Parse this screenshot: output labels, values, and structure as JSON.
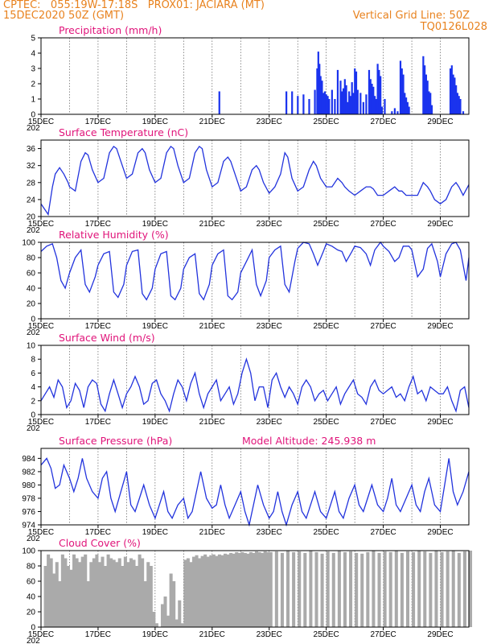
{
  "header": {
    "line1_left": "CPTEC:   055:19W-17:18S   PROX01: JACIARA (MT)",
    "line2_left": "15DEC2020 50Z (GMT)",
    "line2_right": "Vertical Grid Line: 50Z",
    "line3_right": "TQ0126L028"
  },
  "colors": {
    "line": "#2233dd",
    "bar": "#1a33ee",
    "cloud": "#aaaaaa",
    "title": "#e0147a",
    "header": "#e8821e"
  },
  "x_ticks": [
    "15DEC",
    "17DEC",
    "19DEC",
    "21DEC",
    "23DEC",
    "25DEC",
    "27DEC",
    "29DEC"
  ],
  "year_fragment": "202",
  "chart_data": [
    {
      "type": "bar",
      "title": "Precipitation (mm/h)",
      "ylim": [
        0,
        5
      ],
      "yticks": [
        0,
        1,
        2,
        3,
        4,
        5
      ],
      "x_range_days": [
        0,
        15
      ],
      "x": [
        6.25,
        8.6,
        8.8,
        9.0,
        9.2,
        9.4,
        9.6,
        9.68,
        9.72,
        9.76,
        9.8,
        9.85,
        9.9,
        9.95,
        10.0,
        10.05,
        10.1,
        10.2,
        10.3,
        10.4,
        10.5,
        10.55,
        10.6,
        10.65,
        10.7,
        10.75,
        10.8,
        10.85,
        10.9,
        10.95,
        11.0,
        11.05,
        11.1,
        11.2,
        11.3,
        11.4,
        11.5,
        11.55,
        11.6,
        11.65,
        11.7,
        11.75,
        11.8,
        11.85,
        11.9,
        11.95,
        12.05,
        12.3,
        12.4,
        12.5,
        12.6,
        12.65,
        12.7,
        12.75,
        12.8,
        12.85,
        12.9,
        13.4,
        13.45,
        13.5,
        13.55,
        13.6,
        13.65,
        13.7,
        14.35,
        14.4,
        14.45,
        14.5,
        14.55,
        14.6,
        14.65,
        14.7,
        14.8
      ],
      "values": [
        1.5,
        1.5,
        1.5,
        1.2,
        1.3,
        1.0,
        1.6,
        3.0,
        4.1,
        3.3,
        2.5,
        2.2,
        1.4,
        1.5,
        1.3,
        1.2,
        1.0,
        1.6,
        1.0,
        2.9,
        2.2,
        1.5,
        1.7,
        2.3,
        1.9,
        0.8,
        1.5,
        1.2,
        2.1,
        1.4,
        3.0,
        2.8,
        1.6,
        1.4,
        0.8,
        1.3,
        2.9,
        2.3,
        2.0,
        1.8,
        1.2,
        1.0,
        3.3,
        2.9,
        2.5,
        0.5,
        1.0,
        0.2,
        0.4,
        0.2,
        3.5,
        3.0,
        2.6,
        1.4,
        1.1,
        0.8,
        0.5,
        3.8,
        3.2,
        2.6,
        2.2,
        1.5,
        1.4,
        0.6,
        3.0,
        3.2,
        2.6,
        2.4,
        1.9,
        1.4,
        1.2,
        1.0,
        0.2
      ]
    },
    {
      "type": "line",
      "title": "Surface Temperature (nC)",
      "ylim": [
        20,
        38
      ],
      "yticks": [
        20,
        24,
        28,
        32,
        36
      ],
      "x_range_days": [
        0,
        15
      ],
      "x": [
        0,
        0.1,
        0.25,
        0.4,
        0.5,
        0.65,
        0.8,
        0.95,
        1.0,
        1.2,
        1.4,
        1.55,
        1.65,
        1.8,
        2.0,
        2.2,
        2.4,
        2.55,
        2.65,
        2.8,
        3.0,
        3.2,
        3.4,
        3.55,
        3.65,
        3.8,
        4.0,
        4.2,
        4.4,
        4.55,
        4.65,
        4.8,
        5.0,
        5.2,
        5.4,
        5.55,
        5.65,
        5.8,
        6.0,
        6.2,
        6.4,
        6.55,
        6.65,
        6.8,
        7.0,
        7.2,
        7.4,
        7.55,
        7.65,
        7.8,
        8.0,
        8.2,
        8.4,
        8.55,
        8.65,
        8.8,
        9.0,
        9.2,
        9.4,
        9.55,
        9.65,
        9.8,
        10.0,
        10.2,
        10.4,
        10.55,
        10.65,
        10.8,
        11.0,
        11.2,
        11.4,
        11.55,
        11.65,
        11.8,
        12.0,
        12.2,
        12.4,
        12.55,
        12.65,
        12.8,
        13.0,
        13.2,
        13.4,
        13.55,
        13.65,
        13.8,
        14.0,
        14.2,
        14.4,
        14.55,
        14.65,
        14.8,
        15.0
      ],
      "values": [
        23,
        22,
        20.5,
        27,
        30,
        31.5,
        30,
        28,
        27,
        26,
        33,
        35,
        34.5,
        31,
        28,
        29,
        35,
        36.5,
        36,
        33,
        29,
        30,
        35,
        36,
        35,
        31,
        28,
        29,
        35,
        36.5,
        36,
        32,
        28,
        29,
        35,
        36.5,
        36,
        31,
        27,
        28,
        33,
        34,
        33,
        30,
        26,
        27,
        31,
        32,
        31,
        28,
        25.5,
        27,
        30,
        35,
        34,
        29,
        26,
        27,
        31,
        33,
        32,
        29,
        27,
        27,
        29,
        28,
        27,
        26,
        25,
        26,
        27,
        27,
        26.5,
        25,
        25,
        26,
        27,
        26,
        26,
        25,
        25,
        25,
        28,
        27,
        26,
        24,
        23,
        24,
        27,
        28,
        27,
        25,
        27.5
      ]
    },
    {
      "type": "line",
      "title": "Relative Humidity (%)",
      "ylim": [
        0,
        100
      ],
      "yticks": [
        0,
        20,
        40,
        60,
        80,
        100
      ],
      "x_range_days": [
        0,
        15
      ],
      "x": [
        0,
        0.2,
        0.4,
        0.55,
        0.7,
        0.85,
        1.0,
        1.2,
        1.4,
        1.55,
        1.7,
        1.9,
        2.0,
        2.2,
        2.4,
        2.55,
        2.7,
        2.9,
        3.0,
        3.2,
        3.4,
        3.55,
        3.7,
        3.9,
        4.0,
        4.2,
        4.4,
        4.55,
        4.7,
        4.9,
        5.0,
        5.2,
        5.4,
        5.55,
        5.7,
        5.9,
        6.0,
        6.2,
        6.4,
        6.55,
        6.7,
        6.9,
        7.0,
        7.2,
        7.4,
        7.55,
        7.7,
        7.9,
        8.0,
        8.2,
        8.4,
        8.55,
        8.7,
        8.9,
        9.0,
        9.2,
        9.4,
        9.55,
        9.7,
        9.9,
        10.0,
        10.2,
        10.4,
        10.55,
        10.7,
        10.9,
        11.0,
        11.2,
        11.4,
        11.55,
        11.7,
        11.9,
        12.0,
        12.2,
        12.4,
        12.55,
        12.7,
        12.9,
        13.0,
        13.2,
        13.4,
        13.55,
        13.7,
        13.9,
        14.0,
        14.2,
        14.4,
        14.55,
        14.7,
        14.9,
        15.0
      ],
      "values": [
        88,
        95,
        98,
        80,
        50,
        40,
        60,
        80,
        90,
        45,
        35,
        55,
        70,
        85,
        88,
        35,
        28,
        45,
        70,
        88,
        90,
        33,
        25,
        40,
        65,
        85,
        88,
        30,
        25,
        40,
        65,
        80,
        85,
        33,
        25,
        45,
        70,
        85,
        90,
        30,
        25,
        35,
        60,
        75,
        90,
        45,
        30,
        50,
        80,
        90,
        95,
        45,
        35,
        75,
        92,
        100,
        98,
        85,
        70,
        88,
        98,
        95,
        90,
        88,
        75,
        88,
        95,
        93,
        85,
        70,
        90,
        100,
        95,
        88,
        75,
        80,
        95,
        95,
        90,
        55,
        65,
        92,
        98,
        75,
        55,
        85,
        98,
        100,
        90,
        50,
        80
      ]
    },
    {
      "type": "line",
      "title": "Surface Wind (m/s)",
      "ylim": [
        0,
        10
      ],
      "yticks": [
        0,
        2,
        4,
        6,
        8,
        10
      ],
      "x_range_days": [
        0,
        15
      ],
      "x": [
        0,
        0.15,
        0.3,
        0.45,
        0.6,
        0.75,
        0.9,
        1.05,
        1.2,
        1.35,
        1.5,
        1.65,
        1.8,
        1.95,
        2.1,
        2.25,
        2.4,
        2.55,
        2.7,
        2.85,
        3.0,
        3.15,
        3.3,
        3.45,
        3.6,
        3.75,
        3.9,
        4.05,
        4.2,
        4.35,
        4.5,
        4.65,
        4.8,
        4.95,
        5.1,
        5.25,
        5.4,
        5.55,
        5.7,
        5.85,
        6.0,
        6.15,
        6.3,
        6.45,
        6.6,
        6.75,
        6.9,
        7.05,
        7.2,
        7.35,
        7.5,
        7.65,
        7.8,
        7.95,
        8.1,
        8.25,
        8.4,
        8.55,
        8.7,
        8.85,
        9.0,
        9.15,
        9.3,
        9.45,
        9.6,
        9.75,
        9.9,
        10.05,
        10.2,
        10.35,
        10.5,
        10.65,
        10.8,
        10.95,
        11.1,
        11.25,
        11.4,
        11.55,
        11.7,
        11.85,
        12.0,
        12.15,
        12.3,
        12.45,
        12.6,
        12.75,
        12.9,
        13.05,
        13.2,
        13.35,
        13.5,
        13.65,
        13.8,
        13.95,
        14.1,
        14.25,
        14.4,
        14.55,
        14.7,
        14.85,
        15.0
      ],
      "values": [
        2,
        3,
        4,
        2.5,
        5,
        4,
        1,
        2,
        4.5,
        3.5,
        1,
        4,
        5,
        4.5,
        1.5,
        0.5,
        3,
        5,
        3,
        1,
        3,
        4,
        5.5,
        4,
        1.5,
        2,
        4.5,
        5,
        3,
        2,
        0.5,
        3,
        5,
        4,
        2,
        4.5,
        6,
        3,
        1,
        3,
        4,
        5,
        2,
        3,
        4,
        1.5,
        3,
        6,
        8,
        6,
        2,
        4,
        4,
        1,
        5,
        6,
        4,
        2.5,
        4,
        3,
        1.5,
        4,
        5,
        4,
        2,
        3,
        3.5,
        2,
        3,
        4,
        1.5,
        3,
        4,
        5,
        3,
        2.5,
        1.5,
        4,
        5,
        3.5,
        3,
        3.5,
        4,
        2.5,
        3,
        2,
        4,
        5.5,
        3,
        3.5,
        2,
        4,
        3.5,
        3,
        3,
        4,
        2,
        0.5,
        3.5,
        4,
        1
      ]
    },
    {
      "type": "line",
      "title": "Surface Pressure (hPa)",
      "subtitle": "Model Altitude: 245.938 m",
      "ylim": [
        974,
        985.5
      ],
      "yticks": [
        974,
        976,
        978,
        980,
        982,
        984
      ],
      "x_range_days": [
        0,
        15
      ],
      "x": [
        0,
        0.2,
        0.35,
        0.5,
        0.65,
        0.8,
        1.0,
        1.15,
        1.3,
        1.45,
        1.6,
        1.8,
        2.0,
        2.15,
        2.3,
        2.45,
        2.6,
        2.8,
        3.0,
        3.15,
        3.3,
        3.45,
        3.6,
        3.8,
        4.0,
        4.15,
        4.3,
        4.45,
        4.6,
        4.8,
        5.0,
        5.15,
        5.3,
        5.45,
        5.6,
        5.8,
        6.0,
        6.15,
        6.3,
        6.45,
        6.6,
        6.8,
        7.0,
        7.15,
        7.3,
        7.45,
        7.6,
        7.8,
        8.0,
        8.15,
        8.3,
        8.45,
        8.6,
        8.8,
        9.0,
        9.15,
        9.3,
        9.45,
        9.6,
        9.8,
        10.0,
        10.15,
        10.3,
        10.45,
        10.6,
        10.8,
        11.0,
        11.15,
        11.3,
        11.45,
        11.6,
        11.8,
        12.0,
        12.15,
        12.3,
        12.45,
        12.6,
        12.8,
        13.0,
        13.15,
        13.3,
        13.45,
        13.6,
        13.8,
        14.0,
        14.15,
        14.3,
        14.45,
        14.6,
        14.8,
        15.0
      ],
      "values": [
        983,
        984,
        982.5,
        979.5,
        980,
        983,
        981,
        979,
        981,
        984,
        981,
        979,
        978,
        981,
        982,
        978,
        976,
        979,
        982,
        977,
        976,
        978,
        980,
        977,
        975,
        977,
        979,
        976,
        975,
        977,
        978,
        975,
        976,
        979,
        982,
        978,
        976.5,
        977,
        980,
        977,
        975,
        977,
        979,
        976,
        974,
        977,
        980,
        977,
        975,
        976,
        979,
        976,
        974,
        977,
        979,
        976,
        975,
        977,
        979,
        976,
        975,
        977,
        979,
        976,
        975,
        978,
        980,
        977,
        976,
        978,
        980,
        977,
        976,
        978,
        981,
        977,
        976,
        978,
        980,
        977,
        976,
        979,
        981,
        977,
        976,
        980,
        984,
        979,
        977,
        979,
        982
      ]
    },
    {
      "type": "area",
      "title": "Cloud Cover (%)",
      "ylim": [
        0,
        100
      ],
      "yticks": [
        0,
        20,
        40,
        60,
        80,
        100
      ],
      "x_range_days": [
        0,
        15
      ],
      "x": [
        0,
        0.1,
        0.2,
        0.3,
        0.4,
        0.5,
        0.6,
        0.7,
        0.8,
        0.9,
        1.0,
        1.1,
        1.2,
        1.3,
        1.4,
        1.5,
        1.6,
        1.7,
        1.8,
        1.9,
        2.0,
        2.1,
        2.2,
        2.3,
        2.4,
        2.5,
        2.6,
        2.7,
        2.8,
        2.9,
        3.0,
        3.1,
        3.2,
        3.3,
        3.4,
        3.5,
        3.6,
        3.7,
        3.8,
        3.9,
        4.0,
        4.1,
        4.2,
        4.3,
        4.4,
        4.5,
        4.6,
        4.7,
        4.8,
        4.9,
        5.0,
        5.1,
        5.2,
        5.3,
        5.4,
        5.5,
        5.6,
        5.7,
        5.8,
        5.9,
        6.0,
        6.1,
        6.2,
        6.3,
        6.4,
        6.5,
        6.6,
        6.7,
        6.8,
        6.9,
        7.0,
        7.1,
        7.2,
        7.3,
        7.4,
        7.5,
        7.6,
        7.7,
        7.8,
        7.9,
        8.0,
        8.2,
        8.4,
        8.6,
        8.8,
        9.0,
        9.2,
        9.4,
        9.6,
        9.8,
        10.0,
        10.2,
        10.4,
        10.6,
        10.8,
        11.0,
        11.2,
        11.4,
        11.6,
        11.8,
        12.0,
        12.2,
        12.4,
        12.6,
        12.8,
        13.0,
        13.2,
        13.4,
        13.6,
        13.8,
        14.0,
        14.2,
        14.4,
        14.6,
        14.8,
        15.0
      ],
      "values": [
        0,
        80,
        95,
        90,
        70,
        85,
        60,
        95,
        90,
        80,
        75,
        95,
        90,
        85,
        92,
        95,
        60,
        85,
        90,
        95,
        85,
        92,
        80,
        95,
        90,
        88,
        85,
        90,
        80,
        92,
        85,
        90,
        88,
        80,
        95,
        90,
        60,
        85,
        80,
        20,
        5,
        0,
        30,
        40,
        15,
        70,
        60,
        10,
        35,
        5,
        88,
        90,
        85,
        92,
        94,
        90,
        93,
        95,
        92,
        94,
        95,
        93,
        95,
        94,
        96,
        95,
        97,
        96,
        98,
        97,
        98,
        97,
        96,
        98,
        97,
        99,
        98,
        97,
        99,
        98,
        98,
        99,
        97,
        100,
        98,
        99,
        97,
        100,
        98,
        96,
        99,
        97,
        100,
        98,
        99,
        97,
        96,
        98,
        100,
        97,
        99,
        98,
        100,
        97,
        99,
        98,
        100,
        99,
        97,
        100,
        98,
        99,
        100,
        97,
        99,
        100
      ]
    }
  ]
}
